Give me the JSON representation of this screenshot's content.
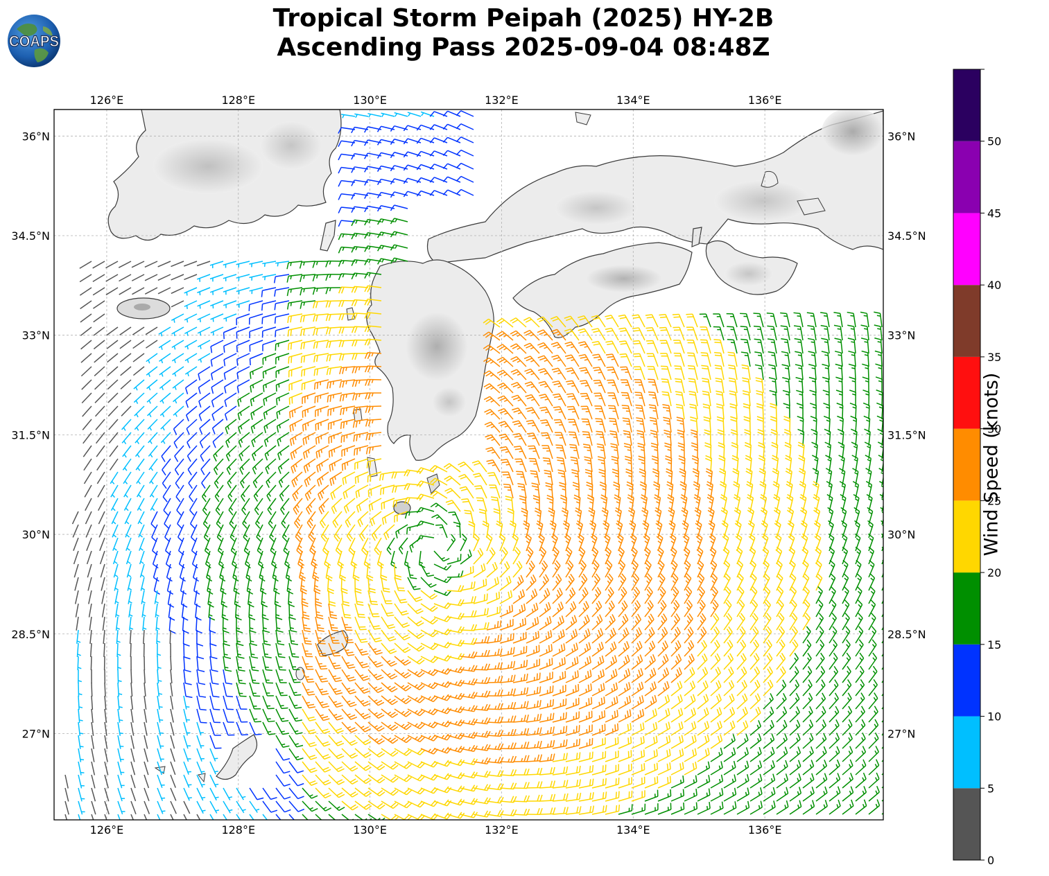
{
  "title": {
    "line1": "Tropical Storm Peipah (2025) HY-2B",
    "line2": "Ascending Pass 2025-09-04 08:48Z"
  },
  "logo": {
    "text": "COAPS"
  },
  "map": {
    "lon_range": [
      125.2,
      137.8
    ],
    "lat_range": [
      25.7,
      36.4
    ],
    "lon_ticks": [
      "126°E",
      "128°E",
      "130°E",
      "132°E",
      "134°E",
      "136°E"
    ],
    "lat_ticks": [
      "36°N",
      "34.5°N",
      "33°N",
      "31.5°N",
      "30°N",
      "28.5°N",
      "27°N"
    ],
    "storm_center_approx": {
      "lon": 131.0,
      "lat": 29.8
    },
    "grid": true
  },
  "colorbar": {
    "label": "Wind Speed (knots)",
    "ticks": [
      "0",
      "5",
      "10",
      "15",
      "20",
      "25",
      "30",
      "35",
      "40",
      "45",
      "50"
    ],
    "bins": [
      {
        "from": 0,
        "to": 5,
        "color": "#555555"
      },
      {
        "from": 5,
        "to": 10,
        "color": "#00bfff"
      },
      {
        "from": 10,
        "to": 15,
        "color": "#0033ff"
      },
      {
        "from": 15,
        "to": 20,
        "color": "#008f00"
      },
      {
        "from": 20,
        "to": 25,
        "color": "#ffd700"
      },
      {
        "from": 25,
        "to": 30,
        "color": "#ff8c00"
      },
      {
        "from": 30,
        "to": 35,
        "color": "#ff0f0f"
      },
      {
        "from": 35,
        "to": 40,
        "color": "#7f3b2a"
      },
      {
        "from": 40,
        "to": 45,
        "color": "#ff00ff"
      },
      {
        "from": 45,
        "to": 50,
        "color": "#8a00b0"
      },
      {
        "from": 50,
        "to": 55,
        "color": "#2b0060"
      }
    ]
  }
}
